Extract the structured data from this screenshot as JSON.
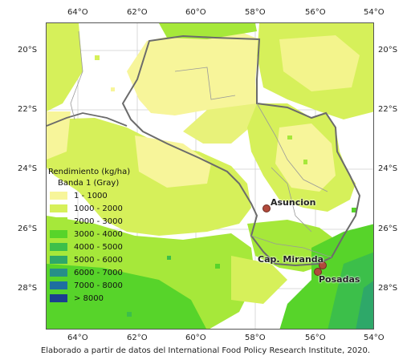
{
  "axes": {
    "lon_labels": [
      "64°O",
      "62°O",
      "60°O",
      "58°O",
      "56°O",
      "54°O"
    ],
    "lat_labels": [
      "20°S",
      "22°S",
      "24°S",
      "26°S",
      "28°S"
    ]
  },
  "legend": {
    "title": "Rendimiento (kg/ha)",
    "subtitle": "Banda 1 (Gray)",
    "items": [
      {
        "label": "1 - 1000",
        "color": "#f7f59a"
      },
      {
        "label": "1000 - 2000",
        "color": "#d6f05a"
      },
      {
        "label": "2000 - 3000",
        "color": "#a6e83a"
      },
      {
        "label": "3000 - 4000",
        "color": "#57d42a"
      },
      {
        "label": "4000 - 5000",
        "color": "#3cbf4a"
      },
      {
        "label": "5000 - 6000",
        "color": "#2ea869"
      },
      {
        "label": "6000 - 7000",
        "color": "#268f88"
      },
      {
        "label": "7000 - 8000",
        "color": "#1e6fa0"
      },
      {
        "label": "> 8000",
        "color": "#1b3f8f"
      }
    ]
  },
  "cities": [
    {
      "name": "Asuncion"
    },
    {
      "name": "Cap. Miranda"
    },
    {
      "name": "Posadas"
    }
  ],
  "credit": "Elaborado a partir de datos del International Food Policy Research Institute, 2020."
}
